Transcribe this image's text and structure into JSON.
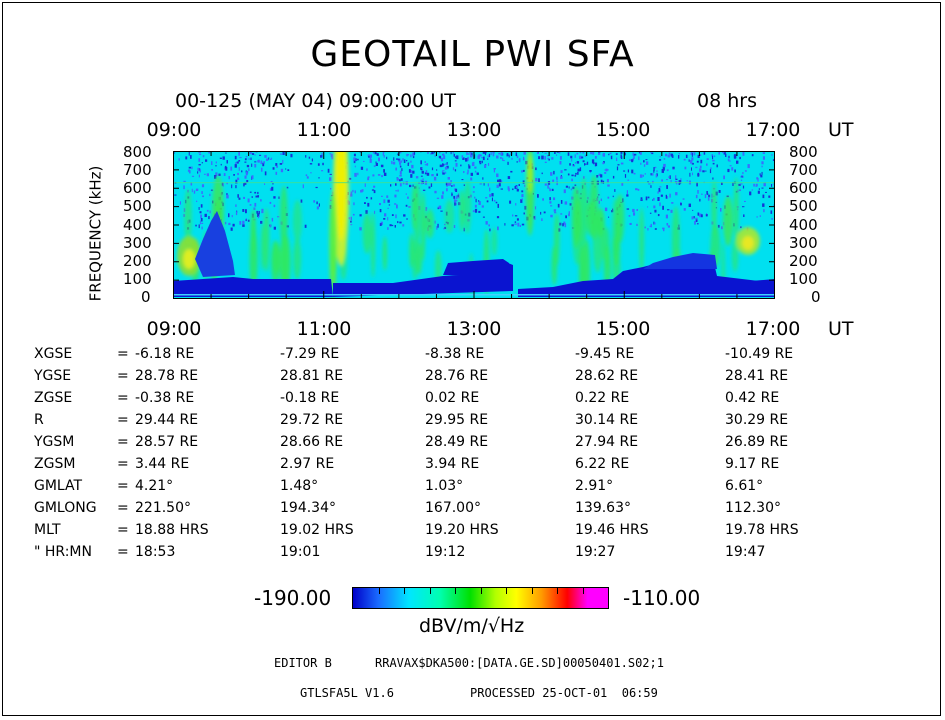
{
  "title": "GEOTAIL PWI SFA",
  "subtitle": "00-125 (MAY 04) 09:00:00 UT",
  "duration": "08 hrs",
  "time_axis": {
    "ticks": [
      "09:00",
      "11:00",
      "13:00",
      "15:00",
      "17:00"
    ],
    "unit": "UT"
  },
  "freq_axis": {
    "label": "FREQUENCY (kHz)",
    "ticks": [
      "800",
      "700",
      "600",
      "500",
      "400",
      "300",
      "200",
      "100",
      "0"
    ]
  },
  "chart_data": {
    "type": "heatmap",
    "title": "GEOTAIL PWI SFA",
    "xlabel": "UT",
    "ylabel": "FREQUENCY (kHz)",
    "x_ticks": [
      "09:00",
      "11:00",
      "13:00",
      "15:00",
      "17:00"
    ],
    "y_range": [
      0,
      800
    ],
    "color_range": [
      -190.0,
      -110.0
    ],
    "color_unit": "dBV/m/√Hz"
  },
  "ephemeris": {
    "rows": [
      {
        "label": "XGSE",
        "eq": "=",
        "values": [
          "-6.18 RE",
          "-7.29 RE",
          "-8.38 RE",
          "-9.45 RE",
          "-10.49 RE"
        ]
      },
      {
        "label": "YGSE",
        "eq": "=",
        "values": [
          "28.78 RE",
          "28.81 RE",
          "28.76 RE",
          "28.62 RE",
          "28.41 RE"
        ]
      },
      {
        "label": "ZGSE",
        "eq": "=",
        "values": [
          "-0.38 RE",
          "-0.18 RE",
          "0.02 RE",
          "0.22 RE",
          "0.42 RE"
        ]
      },
      {
        "label": "R",
        "eq": "=",
        "values": [
          "29.44 RE",
          "29.72 RE",
          "29.95 RE",
          "30.14 RE",
          "30.29 RE"
        ]
      },
      {
        "label": "YGSM",
        "eq": "=",
        "values": [
          "28.57 RE",
          "28.66 RE",
          "28.49 RE",
          "27.94 RE",
          "26.89 RE"
        ]
      },
      {
        "label": "ZGSM",
        "eq": "=",
        "values": [
          "3.44 RE",
          "2.97 RE",
          "3.94 RE",
          "6.22 RE",
          "9.17 RE"
        ]
      },
      {
        "label": "GMLAT",
        "eq": "=",
        "values": [
          "4.21°",
          "1.48°",
          "1.03°",
          "2.91°",
          "6.61°"
        ]
      },
      {
        "label": "GMLONG",
        "eq": "=",
        "values": [
          "221.50°",
          "194.34°",
          "167.00°",
          "139.63°",
          "112.30°"
        ]
      },
      {
        "label": "MLT",
        "eq": "=",
        "values": [
          "18.88 HRS",
          "19.02 HRS",
          "19.20 HRS",
          "19.46 HRS",
          "19.78 HRS"
        ]
      },
      {
        "label": "\" HR:MN",
        "eq": "=",
        "values": [
          "18:53",
          "19:01",
          "19:12",
          "19:27",
          "19:47"
        ]
      }
    ]
  },
  "colorbar": {
    "min_label": "-190.00",
    "max_label": "-110.00",
    "units": "dBV/m/√Hz"
  },
  "footer": {
    "editor": "EDITOR B",
    "file": "RRAVAX$DKA500:[DATA.GE.SD]00050401.S02;1",
    "version": "GTLSFA5L V1.6",
    "processed": "PROCESSED 25-OCT-01  06:59"
  }
}
